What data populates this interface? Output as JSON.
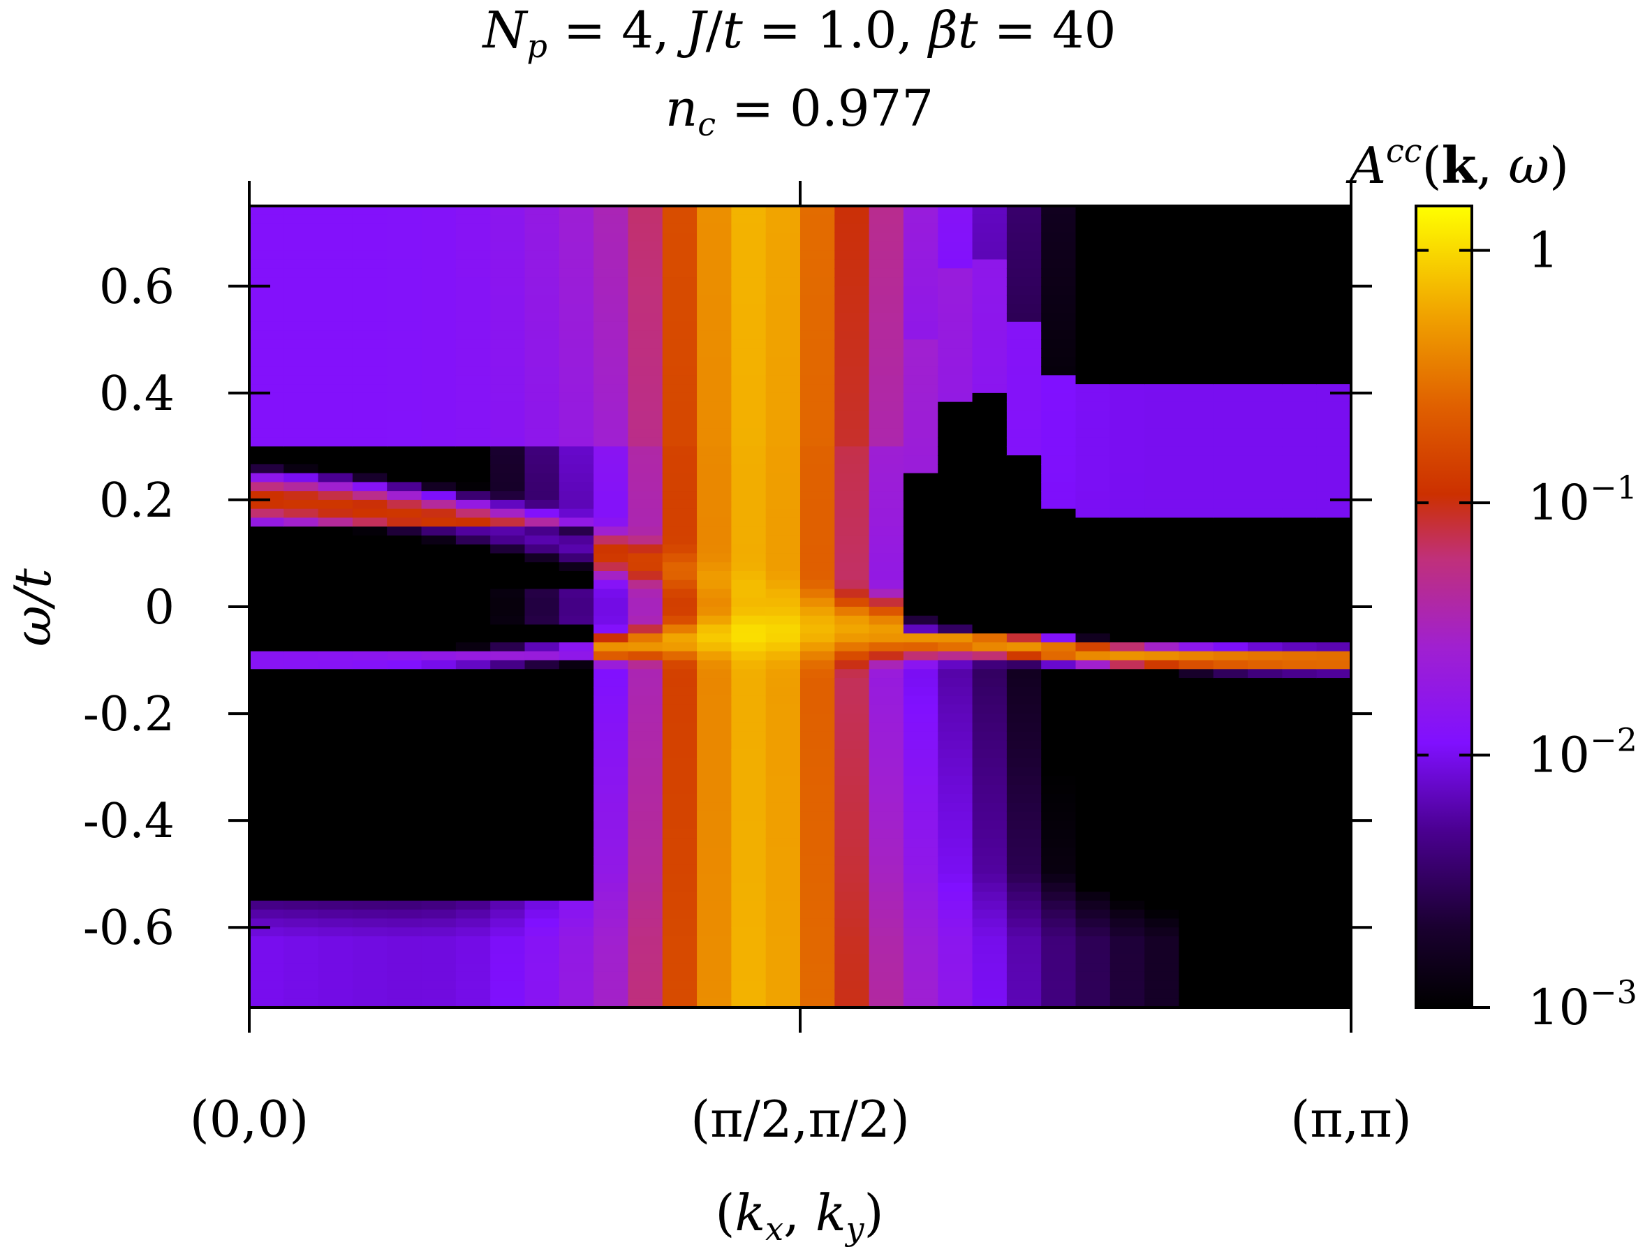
{
  "chart_data": {
    "type": "heatmap",
    "title_line1": "N_p = 4, J/t = 1.0, βt = 40",
    "title_line2": "n_c = 0.977",
    "xlabel": "(k_x, k_y)",
    "ylabel": "ω/t",
    "colorbar_label": "A^cc(k, ω)",
    "x_ticks": [
      "(0,0)",
      "(π/2,π/2)",
      "(π,π)"
    ],
    "y_ticks": [
      "0.6",
      "0.4",
      "0.2",
      "0",
      "-0.2",
      "-0.4",
      "-0.6"
    ],
    "y_tick_values": [
      0.6,
      0.4,
      0.2,
      0,
      -0.2,
      -0.4,
      -0.6
    ],
    "ylim": [
      -0.75,
      0.75
    ],
    "colorbar_ticks": [
      "1",
      "10^-1",
      "10^-2",
      "10^-3"
    ],
    "colorbar_tick_values": [
      1,
      0.1,
      0.01,
      0.001
    ],
    "colorbar_range": [
      0.001,
      1.5
    ],
    "colorbar_scale": "log",
    "colormap": [
      "#000000",
      "#3a0070",
      "#8a10ff",
      "#a020f0",
      "#c0209a",
      "#cc3000",
      "#e06000",
      "#f09000",
      "#ffd000",
      "#ffff00"
    ],
    "k_points": 32,
    "features": {
      "lower_band": "ω/t ≈ -0.1 at (0,0), rising to ≈ -0.05 near (π/2,π/2), returning to ≈ -0.1 at (π,π)",
      "upper_band": "ω/t ≈ +0.2 at (0,0), descending toward ≈ 0 near (π/2,π/2)",
      "strong_weight": "vertical intensity stripe around k ≈ (0.4π,0.4π) to (0.55π,0.55π)"
    }
  }
}
